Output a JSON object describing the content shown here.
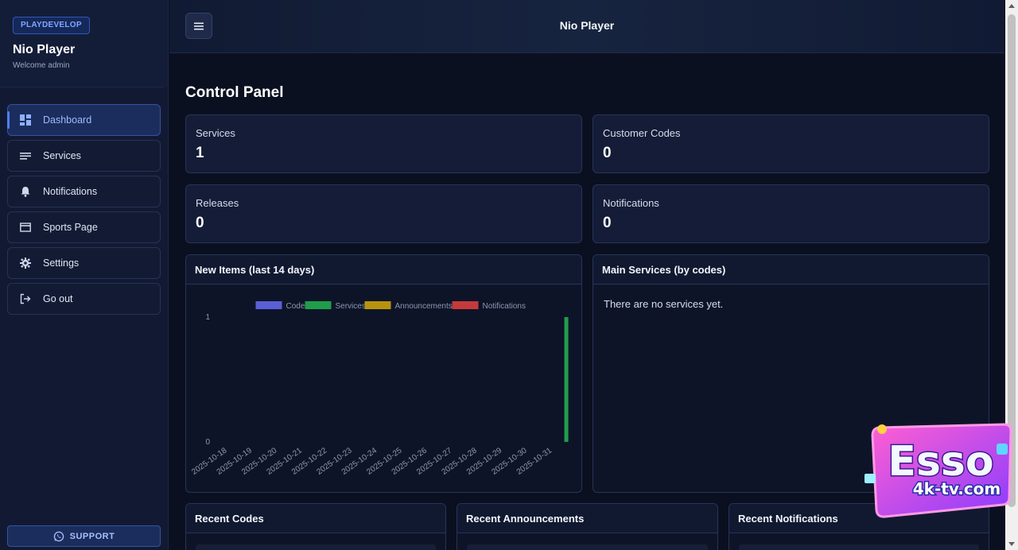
{
  "sidebar": {
    "badge": "PLAYDEVELOP",
    "title": "Nio Player",
    "welcome": "Welcome admin",
    "items": [
      {
        "label": "Dashboard",
        "icon": "dashboard-icon",
        "active": true
      },
      {
        "label": "Services",
        "icon": "list-icon"
      },
      {
        "label": "Notifications",
        "icon": "bell-icon"
      },
      {
        "label": "Sports Page",
        "icon": "card-icon"
      },
      {
        "label": "Settings",
        "icon": "gear-icon"
      },
      {
        "label": "Go out",
        "icon": "logout-icon"
      }
    ],
    "support_label": "SUPPORT"
  },
  "header": {
    "title": "Nio Player"
  },
  "main": {
    "title": "Control Panel",
    "stats": [
      {
        "label": "Services",
        "value": "1"
      },
      {
        "label": "Customer Codes",
        "value": "0"
      },
      {
        "label": "Releases",
        "value": "0"
      },
      {
        "label": "Notifications",
        "value": "0"
      }
    ],
    "chart_panel_title": "New Items (last 14 days)",
    "services_panel_title": "Main Services (by codes)",
    "services_empty": "There are no services yet.",
    "recent": [
      {
        "title": "Recent Codes"
      },
      {
        "title": "Recent Announcements"
      },
      {
        "title": "Recent Notifications"
      }
    ]
  },
  "colors": {
    "codes": "#5b5fd6",
    "services": "#1f9d4b",
    "announcements": "#b8930f",
    "notifications": "#c43a3a"
  },
  "watermark": {
    "brand": "Esso",
    "site": "4k-tv.com"
  },
  "chart_data": {
    "type": "bar",
    "title": "",
    "categories": [
      "2025-10-18",
      "2025-10-19",
      "2025-10-20",
      "2025-10-21",
      "2025-10-22",
      "2025-10-23",
      "2025-10-24",
      "2025-10-25",
      "2025-10-26",
      "2025-10-27",
      "2025-10-28",
      "2025-10-29",
      "2025-10-30",
      "2025-10-31"
    ],
    "series": [
      {
        "name": "Codes",
        "values": [
          0,
          0,
          0,
          0,
          0,
          0,
          0,
          0,
          0,
          0,
          0,
          0,
          0,
          0
        ]
      },
      {
        "name": "Services",
        "values": [
          0,
          0,
          0,
          0,
          0,
          0,
          0,
          0,
          0,
          0,
          0,
          0,
          0,
          1
        ]
      },
      {
        "name": "Announcements",
        "values": [
          0,
          0,
          0,
          0,
          0,
          0,
          0,
          0,
          0,
          0,
          0,
          0,
          0,
          0
        ]
      },
      {
        "name": "Notifications",
        "values": [
          0,
          0,
          0,
          0,
          0,
          0,
          0,
          0,
          0,
          0,
          0,
          0,
          0,
          0
        ]
      }
    ],
    "ylim": [
      0,
      1
    ],
    "yticks": [
      "0",
      "1"
    ],
    "legend": "top",
    "grid": false
  }
}
